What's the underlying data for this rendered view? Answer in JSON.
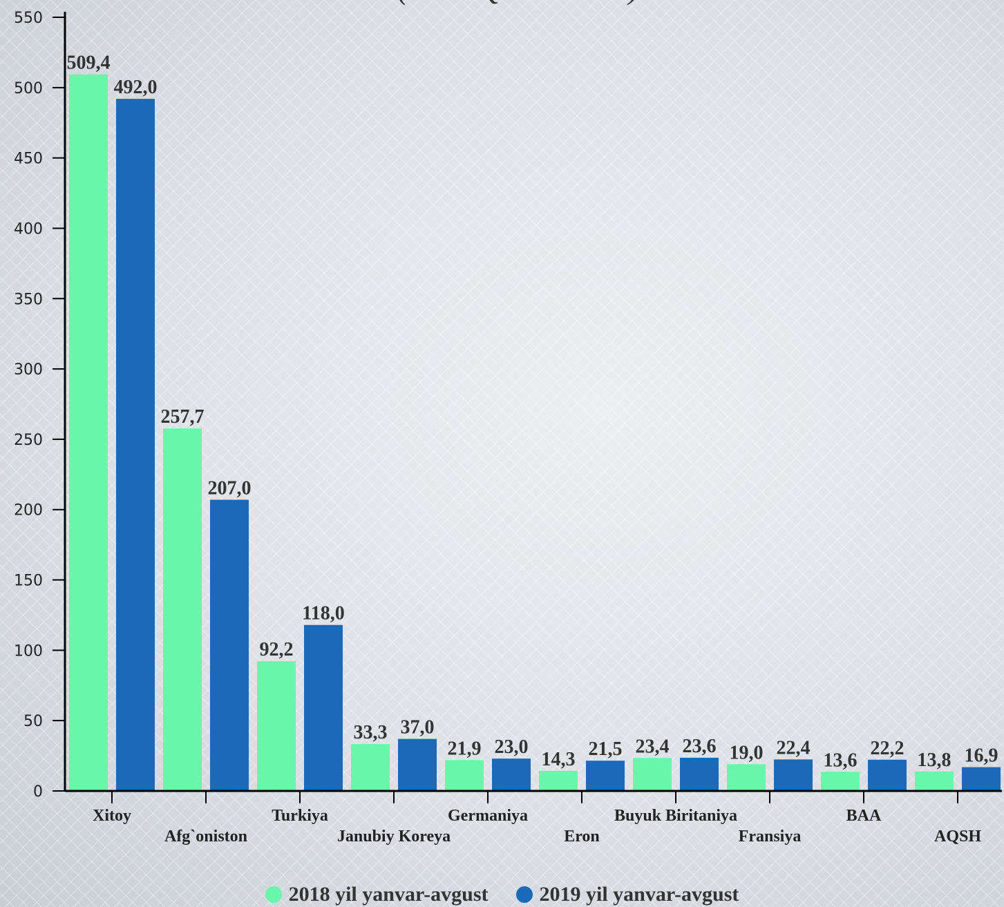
{
  "chart_data": {
    "type": "bar",
    "title": "(mln AQSH dollari)",
    "categories": [
      "Xitoy",
      "Afg`oniston",
      "Turkiya",
      "Janubiy Koreya",
      "Germaniya",
      "Eron",
      "Buyuk Biritaniya",
      "Fransiya",
      "BAA",
      "AQSH"
    ],
    "series": [
      {
        "name": "2018 yil yanvar-avgust",
        "color": "#69f5aa",
        "values": [
          509.4,
          257.7,
          92.2,
          33.3,
          21.9,
          14.3,
          23.4,
          19.0,
          13.6,
          13.8
        ],
        "labels": [
          "509,4",
          "257,7",
          "92,2",
          "33,3",
          "21,9",
          "14,3",
          "23,4",
          "19,0",
          "13,6",
          "13,8"
        ]
      },
      {
        "name": "2019 yil yanvar-avgust",
        "color": "#1a6ab8",
        "values": [
          492.0,
          207.0,
          118.0,
          37.0,
          23.0,
          21.5,
          23.6,
          22.4,
          22.2,
          16.9
        ],
        "labels": [
          "492,0",
          "207,0",
          "118,0",
          "37,0",
          "23,0",
          "21,5",
          "23,6",
          "22,4",
          "22,2",
          "16,9"
        ]
      }
    ],
    "ylim": [
      0,
      550
    ],
    "yticks": [
      0,
      50,
      100,
      150,
      200,
      250,
      300,
      350,
      400,
      450,
      500,
      550
    ],
    "grid": false,
    "legend_position": "bottom"
  },
  "legend": {
    "item1": "2018 yil yanvar-avgust",
    "item2": "2019 yil yanvar-avgust"
  }
}
